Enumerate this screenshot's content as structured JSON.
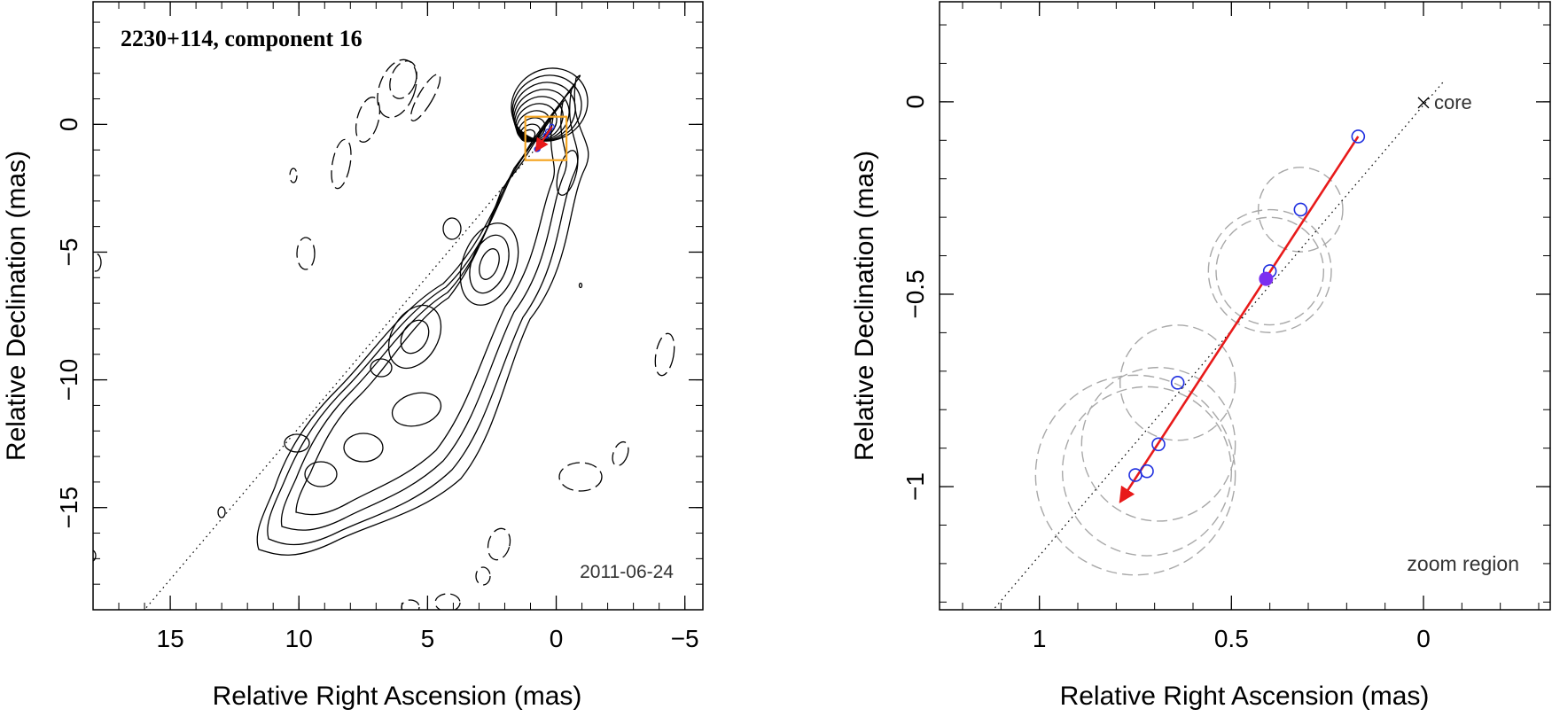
{
  "chart_data": [
    {
      "type": "scatter",
      "title": "2230+114, component 16",
      "date_label": "2011-06-24",
      "xlabel": "Relative Right Ascension (mas)",
      "ylabel": "Relative Declination (mas)",
      "xlim": [
        18.0,
        -5.7
      ],
      "ylim": [
        -19.0,
        4.8
      ],
      "x_ticks": [
        15,
        10,
        5,
        0,
        -5
      ],
      "x_tick_labels": [
        "15",
        "10",
        "5",
        "0",
        "−5"
      ],
      "y_ticks": [
        0,
        -5,
        -10,
        -15
      ],
      "y_tick_labels": [
        "0",
        "−5",
        "−10",
        "−15"
      ],
      "zoom_box": {
        "x": [
          1.2,
          -0.4
        ],
        "y": [
          -1.4,
          0.3
        ],
        "color": "#f5a623"
      },
      "jet_axis": {
        "from": [
          0.0,
          0.0
        ],
        "to": [
          16.0,
          -19.0
        ]
      },
      "component_points": {
        "x": [
          0.17,
          0.32,
          0.4,
          0.64,
          0.69,
          0.72,
          0.75
        ],
        "y": [
          -0.09,
          -0.28,
          -0.44,
          -0.73,
          -0.89,
          -0.96,
          -0.97
        ],
        "color": "#1f2fe0"
      },
      "motion_vector": {
        "from": [
          0.17,
          -0.09
        ],
        "to": [
          0.79,
          -1.04
        ],
        "color": "#e81a1a"
      }
    },
    {
      "type": "scatter",
      "title": "",
      "region_label": "zoom region",
      "core_label": "core",
      "xlabel": "Relative Right Ascension (mas)",
      "ylabel": "Relative Declination (mas)",
      "xlim": [
        1.26,
        -0.33
      ],
      "ylim": [
        -1.32,
        0.26
      ],
      "x_ticks": [
        1,
        0.5,
        0
      ],
      "x_tick_labels": [
        "1",
        "0.5",
        "0"
      ],
      "y_ticks": [
        0,
        -0.5,
        -1
      ],
      "y_tick_labels": [
        "0",
        "−0.5",
        "−1"
      ],
      "core": {
        "x": 0.0,
        "y": 0.0
      },
      "component_points": {
        "x": [
          0.17,
          0.32,
          0.4,
          0.64,
          0.69,
          0.72,
          0.75
        ],
        "y": [
          -0.09,
          -0.28,
          -0.44,
          -0.73,
          -0.89,
          -0.96,
          -0.97
        ],
        "color": "#1f2fe0"
      },
      "mean_position": {
        "x": 0.41,
        "y": -0.46,
        "color": "#7b2ff0"
      },
      "motion_vector": {
        "from": [
          0.17,
          -0.09
        ],
        "to": [
          0.79,
          -1.04
        ],
        "color": "#e81a1a"
      },
      "position_circles": [
        {
          "x": 0.32,
          "y": -0.28,
          "r": 0.11
        },
        {
          "x": 0.4,
          "y": -0.44,
          "r": 0.14
        },
        {
          "x": 0.4,
          "y": -0.44,
          "r": 0.16
        },
        {
          "x": 0.64,
          "y": -0.73,
          "r": 0.15
        },
        {
          "x": 0.69,
          "y": -0.89,
          "r": 0.2
        },
        {
          "x": 0.72,
          "y": -0.96,
          "r": 0.22
        },
        {
          "x": 0.75,
          "y": -0.97,
          "r": 0.26
        }
      ],
      "jet_axis": {
        "from": [
          -0.05,
          0.05
        ],
        "to": [
          1.12,
          -1.32
        ]
      }
    }
  ]
}
